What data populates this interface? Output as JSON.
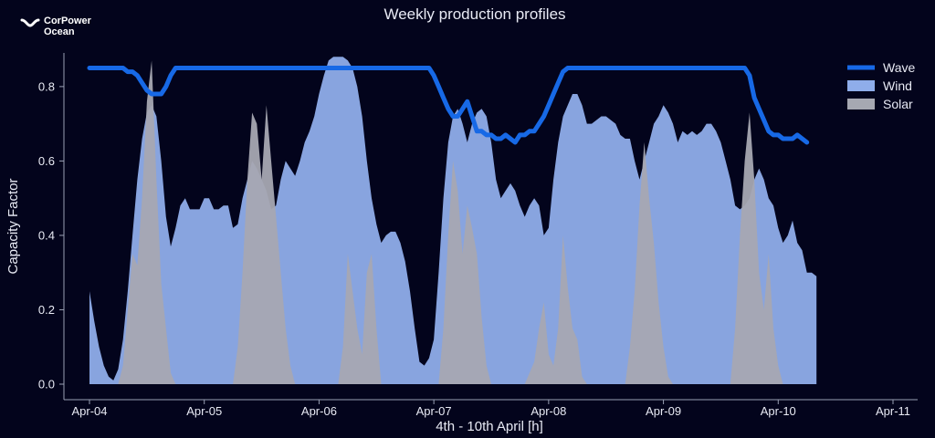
{
  "logo": {
    "line1": "CorPower",
    "line2": "Ocean"
  },
  "chart_data": {
    "type": "area",
    "title": "Weekly production profiles",
    "xlabel": "4th - 10th April [h]",
    "ylabel": "Capacity Factor",
    "xlim": [
      0,
      168
    ],
    "ylim": [
      0,
      0.9
    ],
    "x_ticks": [
      {
        "value": 0,
        "label": "Apr-04"
      },
      {
        "value": 24,
        "label": "Apr-05"
      },
      {
        "value": 48,
        "label": "Apr-06"
      },
      {
        "value": 72,
        "label": "Apr-07"
      },
      {
        "value": 96,
        "label": "Apr-08"
      },
      {
        "value": 120,
        "label": "Apr-09"
      },
      {
        "value": 144,
        "label": "Apr-10"
      },
      {
        "value": 168,
        "label": "Apr-11"
      }
    ],
    "y_ticks": [
      {
        "value": 0,
        "label": "0.0"
      },
      {
        "value": 0.2,
        "label": "0.2"
      },
      {
        "value": 0.4,
        "label": "0.4"
      },
      {
        "value": 0.6,
        "label": "0.6"
      },
      {
        "value": 0.8,
        "label": "0.8"
      }
    ],
    "legend_position": "top-right",
    "series": [
      {
        "name": "Wind",
        "kind": "area",
        "color": "#8fadea",
        "points": [
          [
            0,
            0.25
          ],
          [
            1,
            0.17
          ],
          [
            2,
            0.1
          ],
          [
            3,
            0.05
          ],
          [
            4,
            0.02
          ],
          [
            5,
            0.01
          ],
          [
            6,
            0.04
          ],
          [
            7,
            0.12
          ],
          [
            8,
            0.25
          ],
          [
            9,
            0.4
          ],
          [
            10,
            0.55
          ],
          [
            11,
            0.66
          ],
          [
            12,
            0.73
          ],
          [
            13,
            0.75
          ],
          [
            14,
            0.72
          ],
          [
            15,
            0.6
          ],
          [
            16,
            0.45
          ],
          [
            17,
            0.37
          ],
          [
            18,
            0.42
          ],
          [
            19,
            0.48
          ],
          [
            20,
            0.5
          ],
          [
            21,
            0.47
          ],
          [
            22,
            0.47
          ],
          [
            23,
            0.47
          ],
          [
            24,
            0.5
          ],
          [
            25,
            0.5
          ],
          [
            26,
            0.47
          ],
          [
            27,
            0.47
          ],
          [
            28,
            0.48
          ],
          [
            29,
            0.48
          ],
          [
            30,
            0.42
          ],
          [
            31,
            0.43
          ],
          [
            32,
            0.5
          ],
          [
            33,
            0.55
          ],
          [
            34,
            0.6
          ],
          [
            35,
            0.58
          ],
          [
            36,
            0.55
          ],
          [
            37,
            0.52
          ],
          [
            38,
            0.47
          ],
          [
            39,
            0.48
          ],
          [
            40,
            0.55
          ],
          [
            41,
            0.6
          ],
          [
            42,
            0.58
          ],
          [
            43,
            0.56
          ],
          [
            44,
            0.6
          ],
          [
            45,
            0.65
          ],
          [
            46,
            0.68
          ],
          [
            47,
            0.72
          ],
          [
            48,
            0.78
          ],
          [
            49,
            0.83
          ],
          [
            50,
            0.87
          ],
          [
            51,
            0.88
          ],
          [
            52,
            0.88
          ],
          [
            53,
            0.88
          ],
          [
            54,
            0.87
          ],
          [
            55,
            0.85
          ],
          [
            56,
            0.8
          ],
          [
            57,
            0.72
          ],
          [
            58,
            0.6
          ],
          [
            59,
            0.5
          ],
          [
            60,
            0.43
          ],
          [
            61,
            0.38
          ],
          [
            62,
            0.4
          ],
          [
            63,
            0.41
          ],
          [
            64,
            0.41
          ],
          [
            65,
            0.38
          ],
          [
            66,
            0.33
          ],
          [
            67,
            0.25
          ],
          [
            68,
            0.15
          ],
          [
            69,
            0.06
          ],
          [
            70,
            0.05
          ],
          [
            71,
            0.07
          ],
          [
            72,
            0.12
          ],
          [
            73,
            0.3
          ],
          [
            74,
            0.5
          ],
          [
            75,
            0.65
          ],
          [
            76,
            0.72
          ],
          [
            77,
            0.74
          ],
          [
            78,
            0.7
          ],
          [
            79,
            0.65
          ],
          [
            80,
            0.7
          ],
          [
            81,
            0.73
          ],
          [
            82,
            0.74
          ],
          [
            83,
            0.72
          ],
          [
            84,
            0.65
          ],
          [
            85,
            0.55
          ],
          [
            86,
            0.5
          ],
          [
            87,
            0.52
          ],
          [
            88,
            0.54
          ],
          [
            89,
            0.52
          ],
          [
            90,
            0.48
          ],
          [
            91,
            0.45
          ],
          [
            92,
            0.48
          ],
          [
            93,
            0.5
          ],
          [
            94,
            0.48
          ],
          [
            95,
            0.4
          ],
          [
            96,
            0.42
          ],
          [
            97,
            0.55
          ],
          [
            98,
            0.65
          ],
          [
            99,
            0.72
          ],
          [
            100,
            0.75
          ],
          [
            101,
            0.78
          ],
          [
            102,
            0.78
          ],
          [
            103,
            0.75
          ],
          [
            104,
            0.7
          ],
          [
            105,
            0.7
          ],
          [
            106,
            0.71
          ],
          [
            107,
            0.72
          ],
          [
            108,
            0.72
          ],
          [
            109,
            0.71
          ],
          [
            110,
            0.7
          ],
          [
            111,
            0.67
          ],
          [
            112,
            0.66
          ],
          [
            113,
            0.66
          ],
          [
            114,
            0.6
          ],
          [
            115,
            0.55
          ],
          [
            116,
            0.6
          ],
          [
            117,
            0.65
          ],
          [
            118,
            0.7
          ],
          [
            119,
            0.72
          ],
          [
            120,
            0.75
          ],
          [
            121,
            0.73
          ],
          [
            122,
            0.7
          ],
          [
            123,
            0.65
          ],
          [
            124,
            0.68
          ],
          [
            125,
            0.67
          ],
          [
            126,
            0.68
          ],
          [
            127,
            0.67
          ],
          [
            128,
            0.68
          ],
          [
            129,
            0.7
          ],
          [
            130,
            0.7
          ],
          [
            131,
            0.68
          ],
          [
            132,
            0.65
          ],
          [
            133,
            0.6
          ],
          [
            134,
            0.55
          ],
          [
            135,
            0.48
          ],
          [
            136,
            0.47
          ],
          [
            137,
            0.48
          ],
          [
            138,
            0.5
          ],
          [
            139,
            0.55
          ],
          [
            140,
            0.58
          ],
          [
            141,
            0.55
          ],
          [
            142,
            0.5
          ],
          [
            143,
            0.48
          ],
          [
            144,
            0.42
          ],
          [
            145,
            0.38
          ],
          [
            146,
            0.4
          ],
          [
            147,
            0.44
          ],
          [
            148,
            0.38
          ],
          [
            149,
            0.36
          ],
          [
            150,
            0.3
          ],
          [
            151,
            0.3
          ],
          [
            152,
            0.29
          ]
        ]
      },
      {
        "name": "Solar",
        "kind": "area",
        "color": "#a6a8b2",
        "points": [
          [
            0,
            0
          ],
          [
            6,
            0
          ],
          [
            7,
            0.05
          ],
          [
            8,
            0.2
          ],
          [
            9,
            0.35
          ],
          [
            10,
            0.32
          ],
          [
            11,
            0.5
          ],
          [
            12,
            0.76
          ],
          [
            13,
            0.87
          ],
          [
            14,
            0.55
          ],
          [
            15,
            0.27
          ],
          [
            16,
            0.15
          ],
          [
            17,
            0.03
          ],
          [
            18,
            0
          ],
          [
            30,
            0
          ],
          [
            31,
            0.1
          ],
          [
            32,
            0.3
          ],
          [
            33,
            0.55
          ],
          [
            34,
            0.73
          ],
          [
            35,
            0.7
          ],
          [
            36,
            0.55
          ],
          [
            37,
            0.75
          ],
          [
            38,
            0.6
          ],
          [
            39,
            0.45
          ],
          [
            40,
            0.3
          ],
          [
            41,
            0.15
          ],
          [
            42,
            0.05
          ],
          [
            43,
            0
          ],
          [
            52,
            0
          ],
          [
            53,
            0.1
          ],
          [
            54,
            0.35
          ],
          [
            55,
            0.25
          ],
          [
            56,
            0.15
          ],
          [
            57,
            0.08
          ],
          [
            58,
            0.3
          ],
          [
            59,
            0.35
          ],
          [
            60,
            0.15
          ],
          [
            61,
            0
          ],
          [
            73,
            0
          ],
          [
            74,
            0.15
          ],
          [
            75,
            0.4
          ],
          [
            76,
            0.6
          ],
          [
            77,
            0.52
          ],
          [
            78,
            0.35
          ],
          [
            79,
            0.48
          ],
          [
            80,
            0.42
          ],
          [
            81,
            0.35
          ],
          [
            82,
            0.18
          ],
          [
            83,
            0.05
          ],
          [
            84,
            0
          ],
          [
            91,
            0
          ],
          [
            92,
            0.03
          ],
          [
            93,
            0.06
          ],
          [
            94,
            0.15
          ],
          [
            95,
            0.22
          ],
          [
            96,
            0.08
          ],
          [
            97,
            0.05
          ],
          [
            98,
            0.15
          ],
          [
            99,
            0.4
          ],
          [
            100,
            0.26
          ],
          [
            101,
            0.15
          ],
          [
            102,
            0.12
          ],
          [
            103,
            0.02
          ],
          [
            104,
            0
          ],
          [
            112,
            0
          ],
          [
            113,
            0.1
          ],
          [
            114,
            0.25
          ],
          [
            115,
            0.48
          ],
          [
            116,
            0.65
          ],
          [
            117,
            0.5
          ],
          [
            118,
            0.38
          ],
          [
            119,
            0.22
          ],
          [
            120,
            0.1
          ],
          [
            121,
            0.02
          ],
          [
            122,
            0
          ],
          [
            134,
            0
          ],
          [
            135,
            0.15
          ],
          [
            136,
            0.4
          ],
          [
            137,
            0.6
          ],
          [
            138,
            0.73
          ],
          [
            139,
            0.55
          ],
          [
            140,
            0.3
          ],
          [
            141,
            0.2
          ],
          [
            142,
            0.35
          ],
          [
            143,
            0.15
          ],
          [
            144,
            0.05
          ],
          [
            145,
            0
          ]
        ]
      },
      {
        "name": "Wave",
        "kind": "line",
        "color": "#1769e6",
        "points": [
          [
            0,
            0.85
          ],
          [
            7,
            0.85
          ],
          [
            8,
            0.84
          ],
          [
            9,
            0.84
          ],
          [
            10,
            0.83
          ],
          [
            11,
            0.81
          ],
          [
            12,
            0.79
          ],
          [
            13,
            0.78
          ],
          [
            14,
            0.78
          ],
          [
            15,
            0.78
          ],
          [
            16,
            0.8
          ],
          [
            17,
            0.83
          ],
          [
            18,
            0.85
          ],
          [
            70,
            0.85
          ],
          [
            71,
            0.85
          ],
          [
            72,
            0.83
          ],
          [
            73,
            0.8
          ],
          [
            74,
            0.77
          ],
          [
            75,
            0.74
          ],
          [
            76,
            0.72
          ],
          [
            77,
            0.72
          ],
          [
            78,
            0.74
          ],
          [
            79,
            0.76
          ],
          [
            80,
            0.72
          ],
          [
            81,
            0.68
          ],
          [
            82,
            0.68
          ],
          [
            83,
            0.67
          ],
          [
            84,
            0.67
          ],
          [
            85,
            0.66
          ],
          [
            86,
            0.66
          ],
          [
            87,
            0.67
          ],
          [
            88,
            0.66
          ],
          [
            89,
            0.65
          ],
          [
            90,
            0.67
          ],
          [
            91,
            0.67
          ],
          [
            92,
            0.68
          ],
          [
            93,
            0.68
          ],
          [
            94,
            0.7
          ],
          [
            95,
            0.72
          ],
          [
            96,
            0.75
          ],
          [
            97,
            0.78
          ],
          [
            98,
            0.81
          ],
          [
            99,
            0.84
          ],
          [
            100,
            0.85
          ],
          [
            137,
            0.85
          ],
          [
            138,
            0.83
          ],
          [
            139,
            0.77
          ],
          [
            140,
            0.74
          ],
          [
            141,
            0.71
          ],
          [
            142,
            0.68
          ],
          [
            143,
            0.67
          ],
          [
            144,
            0.67
          ],
          [
            145,
            0.66
          ],
          [
            146,
            0.66
          ],
          [
            147,
            0.66
          ],
          [
            148,
            0.67
          ],
          [
            149,
            0.66
          ],
          [
            150,
            0.65
          ]
        ]
      }
    ]
  }
}
